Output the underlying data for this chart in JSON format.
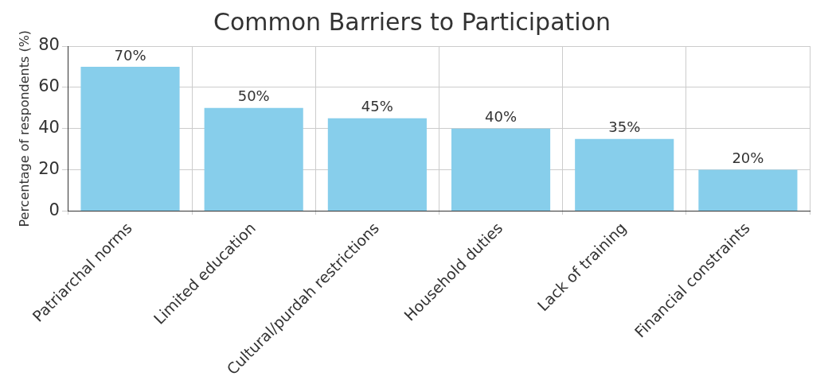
{
  "chart_data": {
    "type": "bar",
    "title": "Common Barriers to Participation",
    "ylabel": "Percentage of respondents (%)",
    "categories": [
      "Patriarchal norms",
      "Limited education",
      "Cultural/purdah restrictions",
      "Household duties",
      "Lack of training",
      "Financial constraints"
    ],
    "values": [
      70,
      50,
      45,
      40,
      35,
      20
    ],
    "color": "#87ceeb",
    "value_labels": [
      "70%",
      "50%",
      "45%",
      "40%",
      "35%",
      "20%"
    ],
    "ylim": [
      0,
      80
    ],
    "yticks": [
      0,
      20,
      40,
      60,
      80
    ],
    "grid": true
  }
}
